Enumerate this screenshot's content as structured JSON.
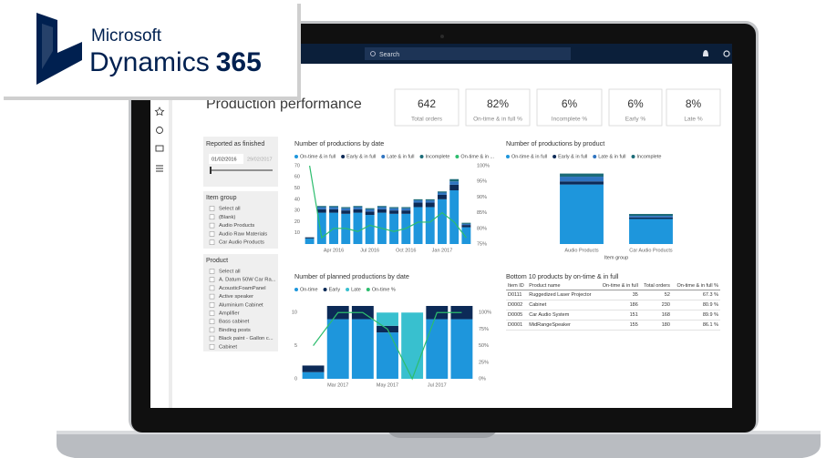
{
  "brand": {
    "company": "Microsoft",
    "product": "Dynamics",
    "version": "365"
  },
  "topbar": {
    "search": "Search"
  },
  "page_title": "Production performance",
  "kpis": [
    {
      "value": "642",
      "label": "Total orders"
    },
    {
      "value": "82%",
      "label": "On-time & in full %"
    },
    {
      "value": "6%",
      "label": "Incomplete %"
    },
    {
      "value": "6%",
      "label": "Early %"
    },
    {
      "value": "8%",
      "label": "Late %"
    }
  ],
  "filters": {
    "date": {
      "title": "Reported as finished",
      "from": "01/02/2016",
      "to": "29/02/2017"
    },
    "item_group": {
      "title": "Item group",
      "options": [
        "Select all",
        "(Blank)",
        "Audio Products",
        "Audio Raw Materials",
        "Car Audio Products"
      ]
    },
    "product": {
      "title": "Product",
      "options": [
        "Select all",
        "A. Datum 50W Car Ra...",
        "AcousticFoamPanel",
        "Active speaker",
        "Aluminium Cabinet",
        "Amplifier",
        "Bass cabinet",
        "Binding posts",
        "Black paint - Gallon c...",
        "Cabinet"
      ]
    }
  },
  "charts": [
    {
      "type": "bar",
      "stacked": true,
      "title": "Number of productions by date",
      "categories": [
        null,
        null,
        "Apr 2016",
        null,
        null,
        "Jul 2016",
        null,
        null,
        "Oct 2016",
        null,
        null,
        "Jan 2017",
        null,
        null
      ],
      "series": [
        {
          "name": "On-time & in full",
          "color": "#1e96dc",
          "values": [
            5,
            28,
            28,
            27,
            28,
            26,
            28,
            27,
            27,
            33,
            33,
            40,
            48,
            15
          ]
        },
        {
          "name": "Early & in full",
          "color": "#0c2a57",
          "values": [
            1,
            3,
            3,
            3,
            3,
            3,
            3,
            3,
            3,
            4,
            4,
            4,
            5,
            2
          ]
        },
        {
          "name": "Late & in full",
          "color": "#2f74c0",
          "values": [
            0,
            2,
            2,
            2,
            2,
            2,
            2,
            2,
            2,
            2,
            2,
            2,
            3,
            1
          ]
        },
        {
          "name": "Incomplete",
          "color": "#1b6b78",
          "values": [
            0,
            1,
            1,
            1,
            1,
            1,
            1,
            1,
            1,
            1,
            1,
            1,
            2,
            1
          ]
        },
        {
          "name": "On-time & in ...",
          "color": "#2dbd6e",
          "type": "line",
          "axis": "y2",
          "values": [
            100,
            77,
            80,
            80,
            79,
            81,
            80,
            79,
            80,
            82,
            82,
            85,
            82,
            77
          ]
        }
      ],
      "ylim": [
        0,
        70
      ],
      "yticks": [
        10,
        20,
        30,
        40,
        50,
        60,
        70
      ],
      "y2lim": [
        75,
        100
      ],
      "y2ticks": [
        {
          "value": 75,
          "label": "75%"
        },
        {
          "value": 80,
          "label": "80%"
        },
        {
          "value": 85,
          "label": "85%"
        },
        {
          "value": 90,
          "label": "90%"
        },
        {
          "value": 95,
          "label": "95%"
        },
        {
          "value": 100,
          "label": "100%"
        }
      ]
    },
    {
      "type": "bar",
      "stacked": true,
      "title": "Number of productions by product",
      "x_label": "Item group",
      "categories": [
        "Audio Products",
        "Car Audio Products"
      ],
      "series": [
        {
          "name": "On-time & in full",
          "color": "#1e96dc",
          "values": [
            380,
            160
          ]
        },
        {
          "name": "Early & in full",
          "color": "#0c2a57",
          "values": [
            20,
            10
          ]
        },
        {
          "name": "Late & in full",
          "color": "#2f74c0",
          "values": [
            30,
            10
          ]
        },
        {
          "name": "Incomplete",
          "color": "#1b6b78",
          "values": [
            20,
            12
          ]
        }
      ],
      "ylim": [
        0,
        500
      ]
    },
    {
      "type": "bar",
      "stacked": true,
      "title": "Number of planned productions by date",
      "categories": [
        null,
        "Mar 2017",
        null,
        "May 2017",
        null,
        "Jul 2017",
        null
      ],
      "series": [
        {
          "name": "On-time",
          "color": "#1e96dc",
          "values": [
            1,
            9,
            9,
            7,
            0,
            9,
            9
          ]
        },
        {
          "name": "Early",
          "color": "#0c2a57",
          "values": [
            1,
            2,
            2,
            1,
            0,
            2,
            2
          ]
        },
        {
          "name": "Late",
          "color": "#38c0cf",
          "values": [
            0,
            0,
            0,
            2,
            10,
            0,
            0
          ]
        },
        {
          "name": "On-time %",
          "color": "#2dbd6e",
          "type": "line",
          "axis": "y2",
          "values": [
            50,
            100,
            100,
            75,
            0,
            100,
            100
          ]
        }
      ],
      "ylim": [
        0,
        11
      ],
      "yticks": [
        0,
        5,
        10
      ],
      "y2lim": [
        0,
        110
      ],
      "y2ticks": [
        {
          "value": 0,
          "label": "0%"
        },
        {
          "value": 25,
          "label": "25%"
        },
        {
          "value": 50,
          "label": "50%"
        },
        {
          "value": 75,
          "label": "75%"
        },
        {
          "value": 100,
          "label": "100%"
        }
      ]
    }
  ],
  "table": {
    "title": "Bottom 10 products by on-time & in full",
    "columns": [
      "Item ID",
      "Product name",
      "On-time & in full",
      "Total orders",
      "On-time & in full %"
    ],
    "rows": [
      [
        "D0111",
        "Ruggedized Laser Projector",
        "35",
        "52",
        "67.3 %"
      ],
      [
        "D0002",
        "Cabinet",
        "186",
        "230",
        "80.9 %"
      ],
      [
        "D0005",
        "Car Audio System",
        "151",
        "168",
        "89.9 %"
      ],
      [
        "D0001",
        "MidRangeSpeaker",
        "155",
        "180",
        "86.1 %"
      ]
    ]
  }
}
